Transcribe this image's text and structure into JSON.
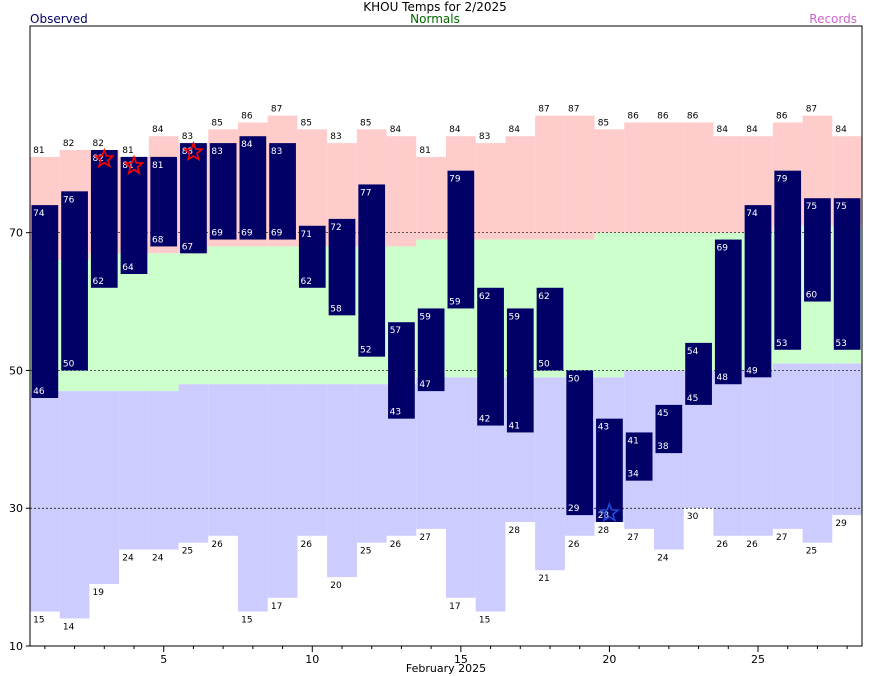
{
  "chart_data": {
    "type": "bar",
    "title": "KHOU Temps for 2/2025",
    "xlabel": "February 2025",
    "ylabel": "",
    "ylim": [
      10,
      100
    ],
    "xlim": [
      0.5,
      28.5
    ],
    "y_ticks": [
      10,
      30,
      50,
      70
    ],
    "y_gridlines": [
      30,
      50,
      70
    ],
    "x_ticks": [
      5,
      10,
      15,
      20,
      25
    ],
    "legend": {
      "observed": "Observed",
      "normals": "Normals",
      "records": "Records",
      "placement": "top"
    },
    "colors": {
      "observed": "#000066",
      "normals": "#ccffcc",
      "records_high": "#ffcccc",
      "records_low": "#ccccff",
      "normals_label": "#006600",
      "records_label": "#cc66cc",
      "record_high_marker": "#ff0000",
      "record_low_marker": "#1f4bd8",
      "gridline": "#000000"
    },
    "days": [
      1,
      2,
      3,
      4,
      5,
      6,
      7,
      8,
      9,
      10,
      11,
      12,
      13,
      14,
      15,
      16,
      17,
      18,
      19,
      20,
      21,
      22,
      23,
      24,
      25,
      26,
      27,
      28
    ],
    "series": [
      {
        "name": "Observed High",
        "values": [
          74,
          76,
          82,
          81,
          81,
          83,
          83,
          84,
          83,
          71,
          72,
          77,
          57,
          59,
          79,
          62,
          59,
          62,
          50,
          43,
          41,
          45,
          54,
          69,
          74,
          79,
          75,
          75
        ]
      },
      {
        "name": "Observed Low",
        "values": [
          46,
          50,
          62,
          64,
          68,
          67,
          69,
          69,
          69,
          62,
          58,
          52,
          43,
          47,
          59,
          42,
          41,
          50,
          29,
          28,
          34,
          38,
          45,
          48,
          49,
          53,
          60,
          53
        ]
      },
      {
        "name": "Normal High",
        "values": [
          66,
          66,
          67,
          67,
          67,
          67,
          68,
          68,
          68,
          68,
          68,
          68,
          68,
          69,
          69,
          69,
          69,
          69,
          69,
          70,
          70,
          70,
          70,
          70,
          70,
          71,
          71,
          71
        ]
      },
      {
        "name": "Normal Low",
        "values": [
          47,
          47,
          47,
          47,
          47,
          48,
          48,
          48,
          48,
          48,
          48,
          48,
          48,
          49,
          49,
          49,
          49,
          49,
          49,
          49,
          50,
          50,
          50,
          50,
          50,
          51,
          51,
          51
        ]
      },
      {
        "name": "Record High",
        "values": [
          81,
          82,
          82,
          81,
          84,
          83,
          85,
          86,
          87,
          85,
          83,
          85,
          84,
          81,
          84,
          83,
          84,
          87,
          87,
          85,
          86,
          86,
          86,
          84,
          84,
          86,
          87,
          84
        ]
      },
      {
        "name": "Record Low",
        "values": [
          15,
          14,
          19,
          24,
          24,
          25,
          26,
          15,
          17,
          26,
          20,
          25,
          26,
          27,
          17,
          15,
          28,
          21,
          26,
          28,
          27,
          24,
          30,
          26,
          26,
          27,
          25,
          29
        ]
      }
    ],
    "record_high_set": [
      3,
      4,
      6
    ],
    "record_low_set": [
      20
    ]
  }
}
